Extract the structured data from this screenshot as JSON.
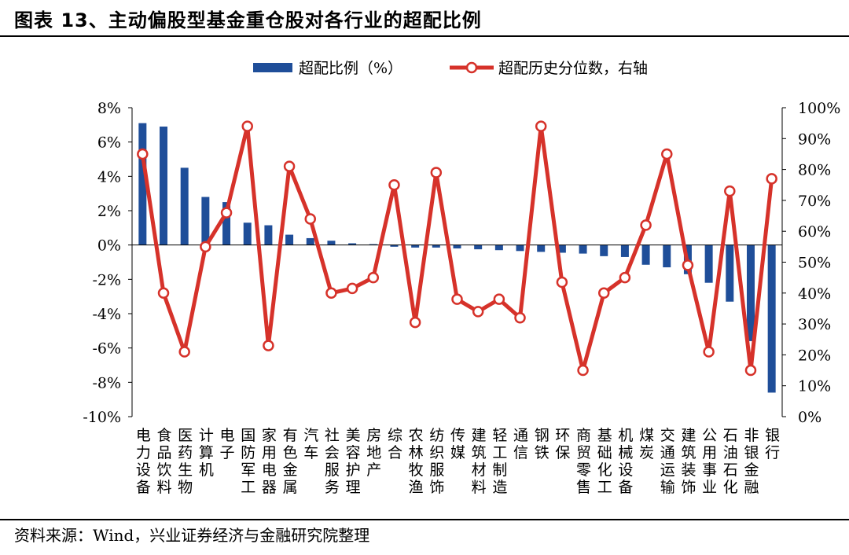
{
  "title": "图表 13、主动偏股型基金重仓股对各行业的超配比例",
  "source": "资料来源：Wind，兴业证券经济与金融研究院整理",
  "chart_data": {
    "type": "bar",
    "colors": {
      "bar": "#1F4E99",
      "line": "#D6322A",
      "marker_fill": "#ffffff"
    },
    "legend": {
      "position": "top-center",
      "entries": [
        "超配比例（%）",
        "超配历史分位数，右轴"
      ]
    },
    "categories": [
      "电力设备",
      "食品饮料",
      "医药生物",
      "计算机",
      "电子",
      "国防军工",
      "家用电器",
      "有色金属",
      "汽车",
      "社会服务",
      "美容护理",
      "房地产",
      "综合",
      "农林牧渔",
      "纺织服饰",
      "传媒",
      "建筑材料",
      "轻工制造",
      "通信",
      "钢铁",
      "环保",
      "商贸零售",
      "基础化工",
      "机械设备",
      "煤炭",
      "交通运输",
      "建筑装饰",
      "公用事业",
      "石油石化",
      "非银金融",
      "银行"
    ],
    "series": [
      {
        "name": "超配比例（%）",
        "type": "bar",
        "axis": "left",
        "values": [
          7.1,
          6.9,
          4.5,
          2.8,
          2.5,
          1.3,
          1.15,
          0.6,
          0.4,
          0.25,
          0.1,
          0.05,
          -0.1,
          -0.15,
          -0.15,
          -0.2,
          -0.25,
          -0.3,
          -0.35,
          -0.4,
          -0.45,
          -0.5,
          -0.65,
          -0.7,
          -1.15,
          -1.3,
          -1.7,
          -2.2,
          -3.3,
          -5.6,
          -8.6
        ]
      },
      {
        "name": "超配历史分位数，右轴",
        "type": "line",
        "axis": "right",
        "values": [
          85,
          40,
          21,
          55,
          66,
          94,
          23,
          81,
          64,
          40,
          41.5,
          45,
          75,
          30.5,
          79,
          38,
          34,
          38,
          32,
          94,
          43.5,
          15,
          40,
          45,
          62,
          85,
          49,
          21,
          73,
          15,
          77
        ]
      }
    ],
    "y_left": {
      "min": -10,
      "max": 8,
      "step": 2,
      "tick_labels": [
        "8%",
        "6%",
        "4%",
        "2%",
        "0%",
        "-2%",
        "-4%",
        "-6%",
        "-8%",
        "-10%"
      ]
    },
    "y_right": {
      "min": 0,
      "max": 100,
      "step": 10,
      "tick_labels": [
        "100%",
        "90%",
        "80%",
        "70%",
        "60%",
        "50%",
        "40%",
        "30%",
        "20%",
        "10%",
        "0%"
      ]
    },
    "grid": false
  }
}
